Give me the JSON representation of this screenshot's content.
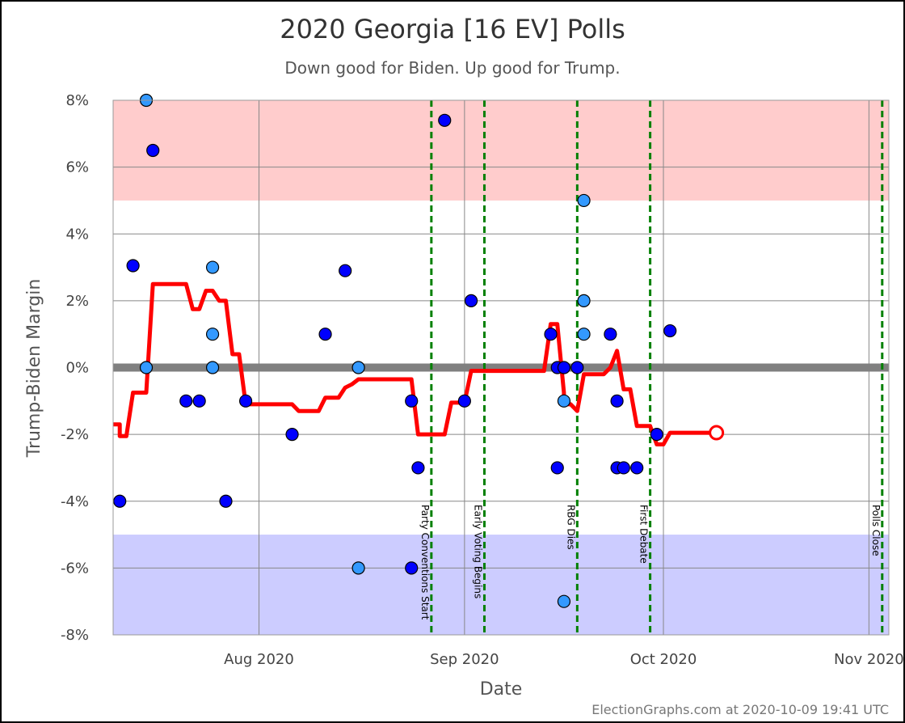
{
  "chart_data": {
    "type": "line",
    "title": "2020 Georgia [16 EV] Polls",
    "subtitle": "Down good for Biden. Up good for Trump.",
    "xlabel": "Date",
    "ylabel": "Trump-Biden Margin",
    "credit": "ElectionGraphs.com at 2020-10-09 19:41 UTC",
    "xlim": [
      "2020-07-10",
      "2020-11-04"
    ],
    "ylim": [
      -8,
      8
    ],
    "x_ticks": [
      {
        "date": "2020-08-01",
        "label": "Aug 2020"
      },
      {
        "date": "2020-09-01",
        "label": "Sep 2020"
      },
      {
        "date": "2020-10-01",
        "label": "Oct 2020"
      },
      {
        "date": "2020-11-01",
        "label": "Nov 2020"
      }
    ],
    "y_ticks": [
      {
        "value": 8,
        "label": "8%"
      },
      {
        "value": 6,
        "label": "6%"
      },
      {
        "value": 4,
        "label": "4%"
      },
      {
        "value": 2,
        "label": "2%"
      },
      {
        "value": 0,
        "label": "0%"
      },
      {
        "value": -2,
        "label": "-2%"
      },
      {
        "value": -4,
        "label": "-4%"
      },
      {
        "value": -6,
        "label": "-6%"
      },
      {
        "value": -8,
        "label": "-8%"
      }
    ],
    "bands": [
      {
        "from": 5,
        "to": 8,
        "color": "#ffcccc"
      },
      {
        "from": -8,
        "to": -5,
        "color": "#ccccff"
      }
    ],
    "events": [
      {
        "date": "2020-08-27",
        "label": "Party Conventions Start"
      },
      {
        "date": "2020-09-04",
        "label": "Early Voting Begins"
      },
      {
        "date": "2020-09-18",
        "label": "RBG Dies"
      },
      {
        "date": "2020-09-29",
        "label": "First Debate"
      },
      {
        "date": "2020-11-03",
        "label": "Polls Close"
      }
    ],
    "average_line": {
      "color": "#ff0000",
      "points": [
        [
          "2020-07-10",
          -1.7
        ],
        [
          "2020-07-11",
          -1.7
        ],
        [
          "2020-07-11",
          -2.05
        ],
        [
          "2020-07-12",
          -2.05
        ],
        [
          "2020-07-13",
          -0.75
        ],
        [
          "2020-07-15",
          -0.75
        ],
        [
          "2020-07-16",
          2.5
        ],
        [
          "2020-07-21",
          2.5
        ],
        [
          "2020-07-22",
          1.75
        ],
        [
          "2020-07-23",
          1.75
        ],
        [
          "2020-07-24",
          2.3
        ],
        [
          "2020-07-25",
          2.3
        ],
        [
          "2020-07-26",
          2.0
        ],
        [
          "2020-07-27",
          2.0
        ],
        [
          "2020-07-28",
          0.4
        ],
        [
          "2020-07-29",
          0.4
        ],
        [
          "2020-07-30",
          -1.1
        ],
        [
          "2020-08-06",
          -1.1
        ],
        [
          "2020-08-07",
          -1.3
        ],
        [
          "2020-08-10",
          -1.3
        ],
        [
          "2020-08-11",
          -0.9
        ],
        [
          "2020-08-13",
          -0.9
        ],
        [
          "2020-08-14",
          -0.6
        ],
        [
          "2020-08-15",
          -0.5
        ],
        [
          "2020-08-16",
          -0.35
        ],
        [
          "2020-08-24",
          -0.35
        ],
        [
          "2020-08-25",
          -2.0
        ],
        [
          "2020-08-29",
          -2.0
        ],
        [
          "2020-08-30",
          -1.05
        ],
        [
          "2020-09-01",
          -1.05
        ],
        [
          "2020-09-02",
          -0.1
        ],
        [
          "2020-09-13",
          -0.1
        ],
        [
          "2020-09-14",
          1.3
        ],
        [
          "2020-09-15",
          1.3
        ],
        [
          "2020-09-16",
          -0.75
        ],
        [
          "2020-09-16",
          -1.1
        ],
        [
          "2020-09-17",
          -1.1
        ],
        [
          "2020-09-18",
          -1.3
        ],
        [
          "2020-09-19",
          -0.2
        ],
        [
          "2020-09-22",
          -0.2
        ],
        [
          "2020-09-23",
          0.0
        ],
        [
          "2020-09-24",
          0.5
        ],
        [
          "2020-09-25",
          -0.65
        ],
        [
          "2020-09-26",
          -0.65
        ],
        [
          "2020-09-27",
          -1.75
        ],
        [
          "2020-09-29",
          -1.75
        ],
        [
          "2020-09-30",
          -2.3
        ],
        [
          "2020-10-01",
          -2.3
        ],
        [
          "2020-10-02",
          -1.95
        ],
        [
          "2020-10-09",
          -1.95
        ]
      ],
      "end_marker": [
        "2020-10-09",
        -1.95
      ]
    },
    "series": [
      {
        "color": "#0000ff",
        "points": [
          [
            "2020-07-11",
            -4.0
          ],
          [
            "2020-07-13",
            3.05
          ],
          [
            "2020-07-16",
            6.5
          ],
          [
            "2020-07-21",
            -1.0
          ],
          [
            "2020-07-23",
            -1.0
          ],
          [
            "2020-07-27",
            -4.0
          ],
          [
            "2020-07-30",
            -1.0
          ],
          [
            "2020-08-06",
            -2.0
          ],
          [
            "2020-08-11",
            1.0
          ],
          [
            "2020-08-14",
            2.9
          ],
          [
            "2020-08-24",
            -1.0
          ],
          [
            "2020-08-24",
            -6.0
          ],
          [
            "2020-08-25",
            -3.0
          ],
          [
            "2020-08-29",
            7.4
          ],
          [
            "2020-09-01",
            -1.0
          ],
          [
            "2020-09-02",
            2.0
          ],
          [
            "2020-09-14",
            1.0
          ],
          [
            "2020-09-15",
            -3.0
          ],
          [
            "2020-09-15",
            0.0
          ],
          [
            "2020-09-16",
            0.0
          ],
          [
            "2020-09-18",
            0.0
          ],
          [
            "2020-09-23",
            1.0
          ],
          [
            "2020-09-24",
            -1.0
          ],
          [
            "2020-09-24",
            -3.0
          ],
          [
            "2020-09-25",
            -3.0
          ],
          [
            "2020-09-27",
            -3.0
          ],
          [
            "2020-09-30",
            -2.0
          ],
          [
            "2020-10-02",
            1.1
          ]
        ]
      },
      {
        "color": "#3399ff",
        "points": [
          [
            "2020-07-15",
            8.0
          ],
          [
            "2020-07-15",
            0.0
          ],
          [
            "2020-07-25",
            3.0
          ],
          [
            "2020-07-25",
            1.0
          ],
          [
            "2020-07-25",
            0.0
          ],
          [
            "2020-08-16",
            0.0
          ],
          [
            "2020-08-16",
            -6.0
          ],
          [
            "2020-09-16",
            -1.0
          ],
          [
            "2020-09-16",
            -7.0
          ],
          [
            "2020-09-19",
            5.0
          ],
          [
            "2020-09-19",
            2.0
          ],
          [
            "2020-09-19",
            1.0
          ]
        ]
      }
    ]
  }
}
